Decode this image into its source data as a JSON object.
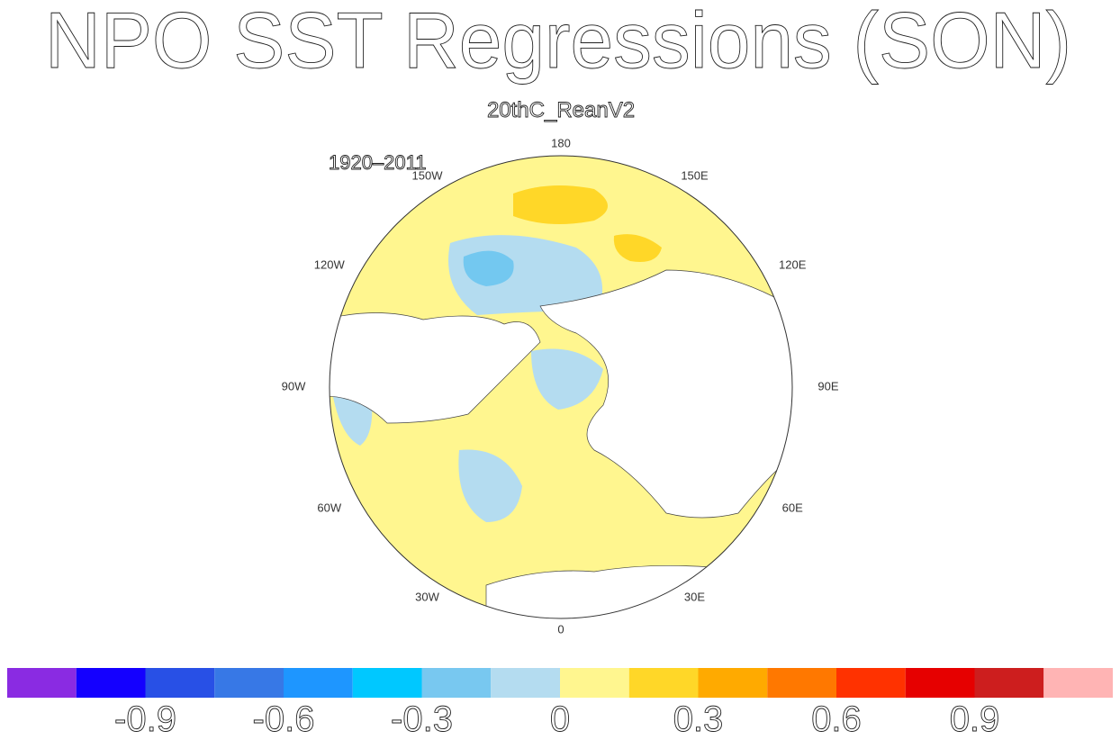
{
  "header": {
    "title": "NPO SST Regressions (SON)",
    "subtitle": "20thC_ReanV2",
    "period": "1920–2011"
  },
  "map": {
    "longitude_labels": [
      "180",
      "150E",
      "120E",
      "90E",
      "60E",
      "30E",
      "0",
      "30W",
      "60W",
      "90W",
      "120W",
      "150W"
    ]
  },
  "colorbar": {
    "colors": [
      "#8a2be2",
      "#1400ff",
      "#2850e6",
      "#3778e6",
      "#1e96ff",
      "#00c8ff",
      "#78c8f0",
      "#b4dcf0",
      "#fff68f",
      "#ffd728",
      "#ffaa00",
      "#ff7800",
      "#ff3200",
      "#e60000",
      "#cd1e1e",
      "#ffb4b4"
    ],
    "lim": [
      -1.2,
      1.2
    ],
    "ticks": [
      -0.9,
      -0.6,
      -0.3,
      0,
      0.3,
      0.6,
      0.9
    ]
  }
}
